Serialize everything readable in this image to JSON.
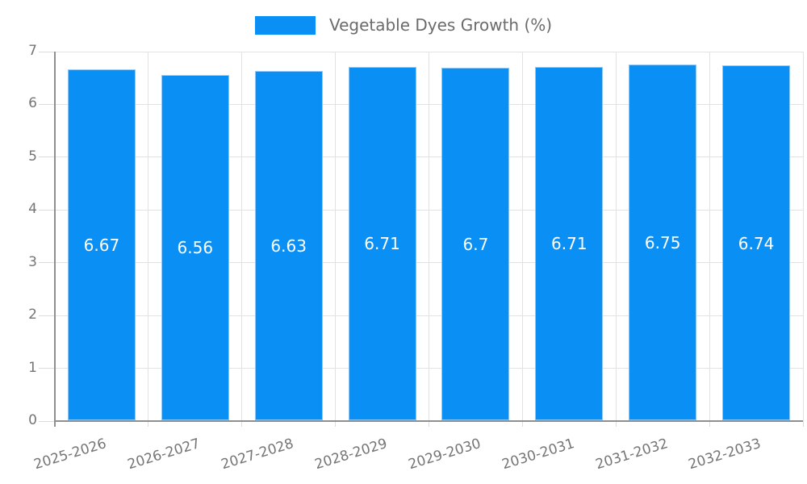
{
  "chart_data": {
    "type": "bar",
    "title": "",
    "legend_label": "Vegetable Dyes Growth (%)",
    "legend_position": "top-center",
    "categories": [
      "2025-2026",
      "2026-2027",
      "2027-2028",
      "2028-2029",
      "2029-2030",
      "2030-2031",
      "2031-2032",
      "2032-2033"
    ],
    "values": [
      6.67,
      6.56,
      6.63,
      6.71,
      6.7,
      6.71,
      6.75,
      6.74
    ],
    "value_labels": [
      "6.67",
      "6.56",
      "6.63",
      "6.71",
      "6.7",
      "6.71",
      "6.75",
      "6.74"
    ],
    "xlabel": "",
    "ylabel": "",
    "ylim": [
      0,
      7
    ],
    "ytick_step": 1,
    "yticks": [
      0,
      1,
      2,
      3,
      4,
      5,
      6,
      7
    ],
    "grid": true,
    "colors": {
      "bar": "#0a90f5",
      "bar_border": "#8cc8f9",
      "value_label": "#ffffff",
      "grid_line": "#e2e2e2",
      "axis_line": "#8f8f8f",
      "tick_line": "#dcdcdc",
      "tick_text": "#757575",
      "legend_text": "#6b6b6b"
    }
  }
}
